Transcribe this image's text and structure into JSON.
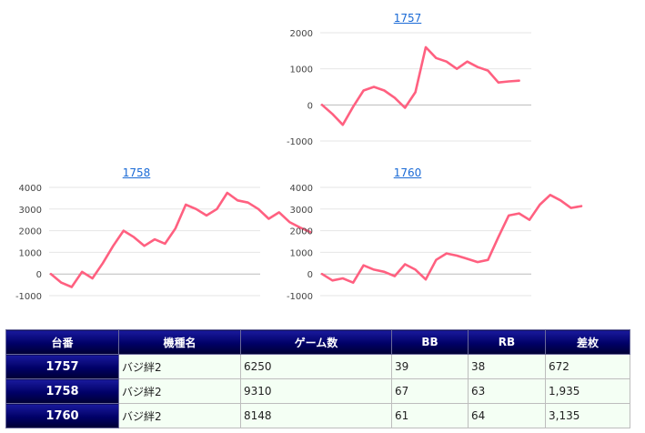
{
  "chart_data": [
    {
      "type": "line",
      "title": "1757",
      "ylim": [
        -1000,
        2000
      ],
      "yticks": [
        2000,
        1000,
        0,
        -1000
      ],
      "color": "#ff6080",
      "values": [
        0,
        -250,
        -550,
        -50,
        400,
        500,
        400,
        200,
        -80,
        350,
        1600,
        1300,
        1200,
        1000,
        1200,
        1050,
        950,
        620,
        650,
        672
      ]
    },
    {
      "type": "line",
      "title": "1758",
      "ylim": [
        -1000,
        4000
      ],
      "yticks": [
        4000,
        3000,
        2000,
        1000,
        0,
        -1000
      ],
      "color": "#ff6080",
      "values": [
        0,
        -400,
        -600,
        100,
        -200,
        500,
        1300,
        2000,
        1700,
        1300,
        1600,
        1400,
        2100,
        3200,
        3000,
        2700,
        3000,
        3750,
        3400,
        3300,
        3000,
        2550,
        2850,
        2400,
        2150,
        1935
      ]
    },
    {
      "type": "line",
      "title": "1760",
      "ylim": [
        -1000,
        4000
      ],
      "yticks": [
        4000,
        3000,
        2000,
        1000,
        0,
        -1000
      ],
      "color": "#ff6080",
      "values": [
        0,
        -300,
        -200,
        -400,
        400,
        200,
        100,
        -100,
        450,
        200,
        -250,
        650,
        950,
        850,
        700,
        550,
        650,
        1700,
        2700,
        2800,
        2500,
        3200,
        3650,
        3400,
        3050,
        3135
      ]
    }
  ],
  "table": {
    "headers": [
      "台番",
      "機種名",
      "ゲーム数",
      "BB",
      "RB",
      "差枚"
    ],
    "rows": [
      [
        "1757",
        "バジ絆2",
        "6250",
        "39",
        "38",
        "672"
      ],
      [
        "1758",
        "バジ絆2",
        "9310",
        "67",
        "63",
        "1,935"
      ],
      [
        "1760",
        "バジ絆2",
        "8148",
        "61",
        "64",
        "3,135"
      ]
    ]
  }
}
